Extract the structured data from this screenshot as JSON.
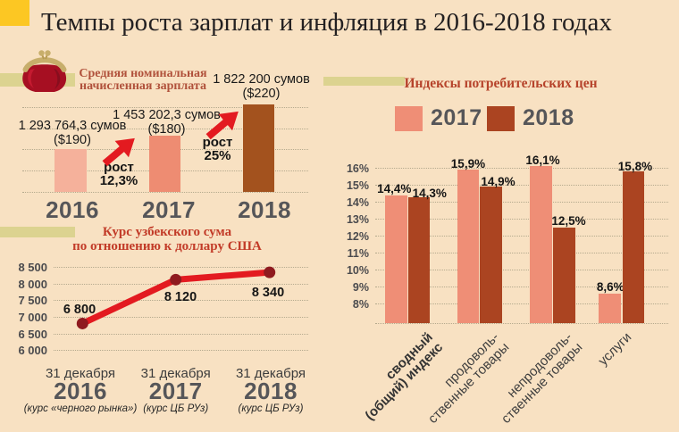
{
  "title": "Темпы роста зарплат и инфляция в 2016-2018 годах",
  "colors": {
    "background": "#f8e1c2",
    "accent_yellow": "#fcc723",
    "accent_olive": "#dcd390",
    "salary_bars": [
      "#f5b19b",
      "#ee8c72",
      "#a3521e"
    ],
    "cpi_2017": "#ef8e76",
    "cpi_2018": "#ab4421",
    "line_red": "#e31a20",
    "point_maroon": "#8f1a1f",
    "heading_red": "#b6432b",
    "year_gray": "#565659"
  },
  "chart_data": [
    {
      "type": "bar",
      "title": "Средняя номинальная начисленная зарплата",
      "title_lines": [
        "Средняя номинальная",
        "начисленная зарплата"
      ],
      "categories": [
        "2016",
        "2017",
        "2018"
      ],
      "values": [
        1293764.3,
        1453202.3,
        1822200
      ],
      "value_labels": [
        "1 293 764,3 сумов",
        "1 453 202,3 сумов",
        "1 822 200 сумов"
      ],
      "usd_labels": [
        "($190)",
        "($180)",
        "($220)"
      ],
      "growth_labels": [
        {
          "word": "рост",
          "pct": "12,3%"
        },
        {
          "word": "рост",
          "pct": "25%"
        }
      ],
      "ylim": [
        0,
        2000000
      ]
    },
    {
      "type": "line",
      "title": "Курс узбекского сума по отношению к доллару США",
      "title_lines": [
        "Курс узбекского сума",
        "по отношению к доллару США"
      ],
      "values": [
        6800,
        8120,
        8340
      ],
      "point_labels": [
        "6 800",
        "8 120",
        "8 340"
      ],
      "x_labels": [
        {
          "date": "31 декабря",
          "year": "2016",
          "caption": "(курс «черного рынка»)"
        },
        {
          "date": "31 декабря",
          "year": "2017",
          "caption": "(курс ЦБ РУз)"
        },
        {
          "date": "31 декабря",
          "year": "2018",
          "caption": "(курс ЦБ РУз)"
        }
      ],
      "ylim": [
        6000,
        8500
      ],
      "y_ticks": [
        "8 500",
        "8 000",
        "7 500",
        "7 000",
        "6 500",
        "6 000"
      ],
      "y_tick_values": [
        8500,
        8000,
        7500,
        7000,
        6500,
        6000
      ]
    },
    {
      "type": "bar",
      "title": "Индексы потребительских цен",
      "categories": [
        [
          "сводный",
          "(общий) индекс"
        ],
        [
          "продоволь-",
          "ственные товары"
        ],
        [
          "непродоволь-",
          "ственные товары"
        ],
        [
          "услуги"
        ]
      ],
      "series": [
        {
          "name": "2017",
          "values": [
            14.4,
            15.9,
            16.1,
            8.6
          ],
          "labels": [
            "14,4%",
            "15,9%",
            "16,1%",
            "8,6%"
          ],
          "color": "#ef8e76"
        },
        {
          "name": "2018",
          "values": [
            14.3,
            14.9,
            12.5,
            15.8
          ],
          "labels": [
            "14,3%",
            "14,9%",
            "12,5%",
            "15,8%"
          ],
          "color": "#ab4421"
        }
      ],
      "ylim": [
        8,
        16
      ],
      "y_ticks": [
        "16%",
        "15%",
        "14%",
        "13%",
        "12%",
        "11%",
        "10%",
        "9%",
        "8%"
      ],
      "y_tick_values": [
        16,
        15,
        14,
        13,
        12,
        11,
        10,
        9,
        8
      ]
    }
  ]
}
